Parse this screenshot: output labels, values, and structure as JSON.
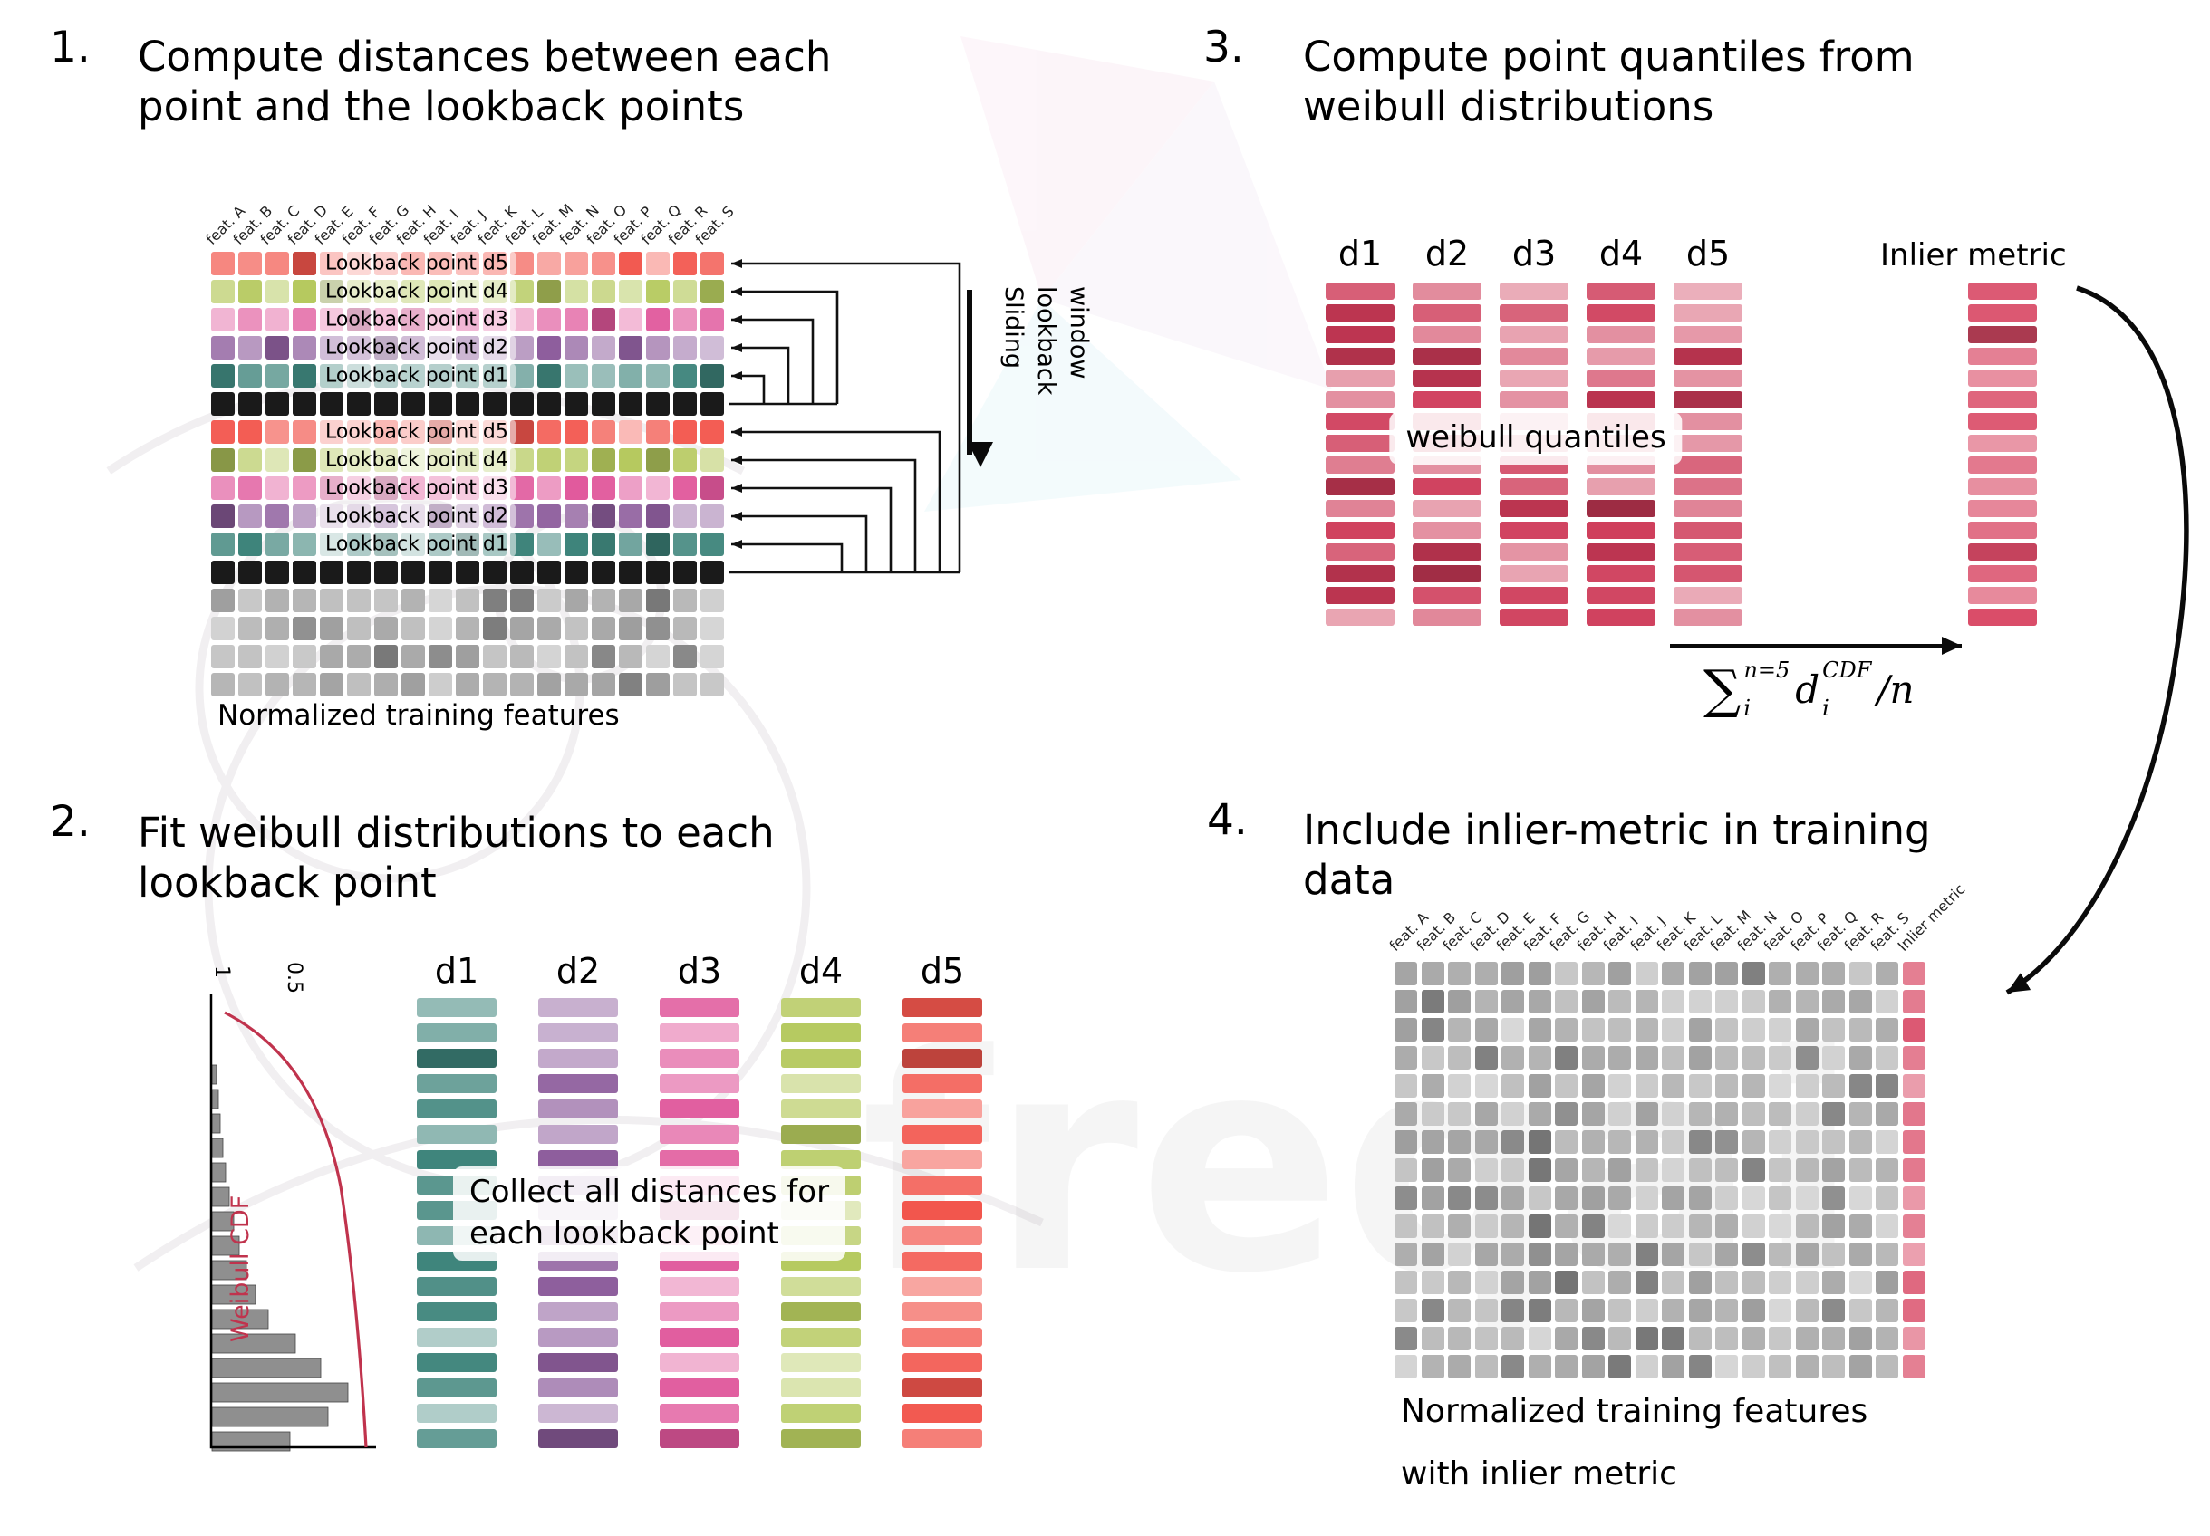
{
  "watermark": {
    "text": "freqai"
  },
  "palette": {
    "d1": "#3E847B",
    "d2": "#8E5E9D",
    "d3": "#E0579B",
    "d4": "#B5C95E",
    "d5": "#F2564D",
    "current": "#1A1A1A",
    "plain": "#9E9E9E",
    "quantile": "#CE3A58",
    "metric": "#D94A66"
  },
  "panel1": {
    "number": "1.",
    "title_lines": [
      "Compute distances between each",
      "point and the lookback points"
    ],
    "features": [
      "feat. A",
      "feat. B",
      "feat. C",
      "feat. D",
      "feat. E",
      "feat. F",
      "feat. G",
      "feat. H",
      "feat. I",
      "feat. J",
      "feat. K",
      "feat. L",
      "feat. M",
      "feat. N",
      "feat. O",
      "feat. P",
      "feat. Q",
      "feat. R",
      "feat. S"
    ],
    "rows": [
      {
        "kind": "d5",
        "label": "Lookback point d5"
      },
      {
        "kind": "d4",
        "label": "Lookback point d4"
      },
      {
        "kind": "d3",
        "label": "Lookback point d3"
      },
      {
        "kind": "d2",
        "label": "Lookback point d2"
      },
      {
        "kind": "d1",
        "label": "Lookback point d1"
      },
      {
        "kind": "current"
      },
      {
        "kind": "d5",
        "label": "Lookback point d5"
      },
      {
        "kind": "d4",
        "label": "Lookback point d4"
      },
      {
        "kind": "d3",
        "label": "Lookback point d3"
      },
      {
        "kind": "d2",
        "label": "Lookback point d2"
      },
      {
        "kind": "d1",
        "label": "Lookback point d1"
      },
      {
        "kind": "current"
      },
      {
        "kind": "plain"
      },
      {
        "kind": "plain"
      },
      {
        "kind": "plain"
      },
      {
        "kind": "plain"
      }
    ],
    "sliding_lines": [
      "Sliding",
      "lookback",
      "window"
    ],
    "caption": "Normalized training features"
  },
  "panel2": {
    "number": "2.",
    "title_lines": [
      "Fit weibull distributions to each",
      "lookback point"
    ],
    "plot": {
      "ylabel": "Weibull CDF",
      "ticks": [
        "1",
        "0.5"
      ],
      "hist_bars": [
        5,
        7,
        9,
        12,
        15,
        19,
        24,
        30,
        38,
        48,
        62,
        92,
        120,
        150,
        128,
        86
      ]
    },
    "columns": [
      {
        "label": "d1",
        "kind": "d1"
      },
      {
        "label": "d2",
        "kind": "d2"
      },
      {
        "label": "d3",
        "kind": "d3"
      },
      {
        "label": "d4",
        "kind": "d4"
      },
      {
        "label": "d5",
        "kind": "d5"
      }
    ],
    "overlay_lines": [
      "Collect all distances for",
      "each lookback point"
    ]
  },
  "panel3": {
    "number": "3.",
    "title_lines": [
      "Compute point quantiles from",
      "weibull distributions"
    ],
    "columns": [
      {
        "label": "d1",
        "kind": "quantile"
      },
      {
        "label": "d2",
        "kind": "quantile"
      },
      {
        "label": "d3",
        "kind": "quantile"
      },
      {
        "label": "d4",
        "kind": "quantile"
      },
      {
        "label": "d5",
        "kind": "quantile"
      }
    ],
    "overlay": "weibull quantiles",
    "inlier_label": "Inlier metric",
    "formula": {
      "sum": "∑",
      "sum_sup": "n=5",
      "sum_sub": "i",
      "var": "d",
      "var_sup": "CDF",
      "var_sub": "i",
      "tail": "/n"
    }
  },
  "panel4": {
    "number": "4.",
    "title_lines": [
      "Include inlier-metric in training",
      "data"
    ],
    "features": [
      "feat. A",
      "feat. B",
      "feat. C",
      "feat. D",
      "feat. E",
      "feat. F",
      "feat. G",
      "feat. H",
      "feat. I",
      "feat. J",
      "feat. K",
      "feat. L",
      "feat. M",
      "feat. N",
      "feat. O",
      "feat. P",
      "feat. Q",
      "feat. R",
      "feat. S"
    ],
    "extra_column": "Inlier metric",
    "row_count": 15,
    "caption_lines": [
      "Normalized training features",
      "with inlier metric"
    ]
  }
}
